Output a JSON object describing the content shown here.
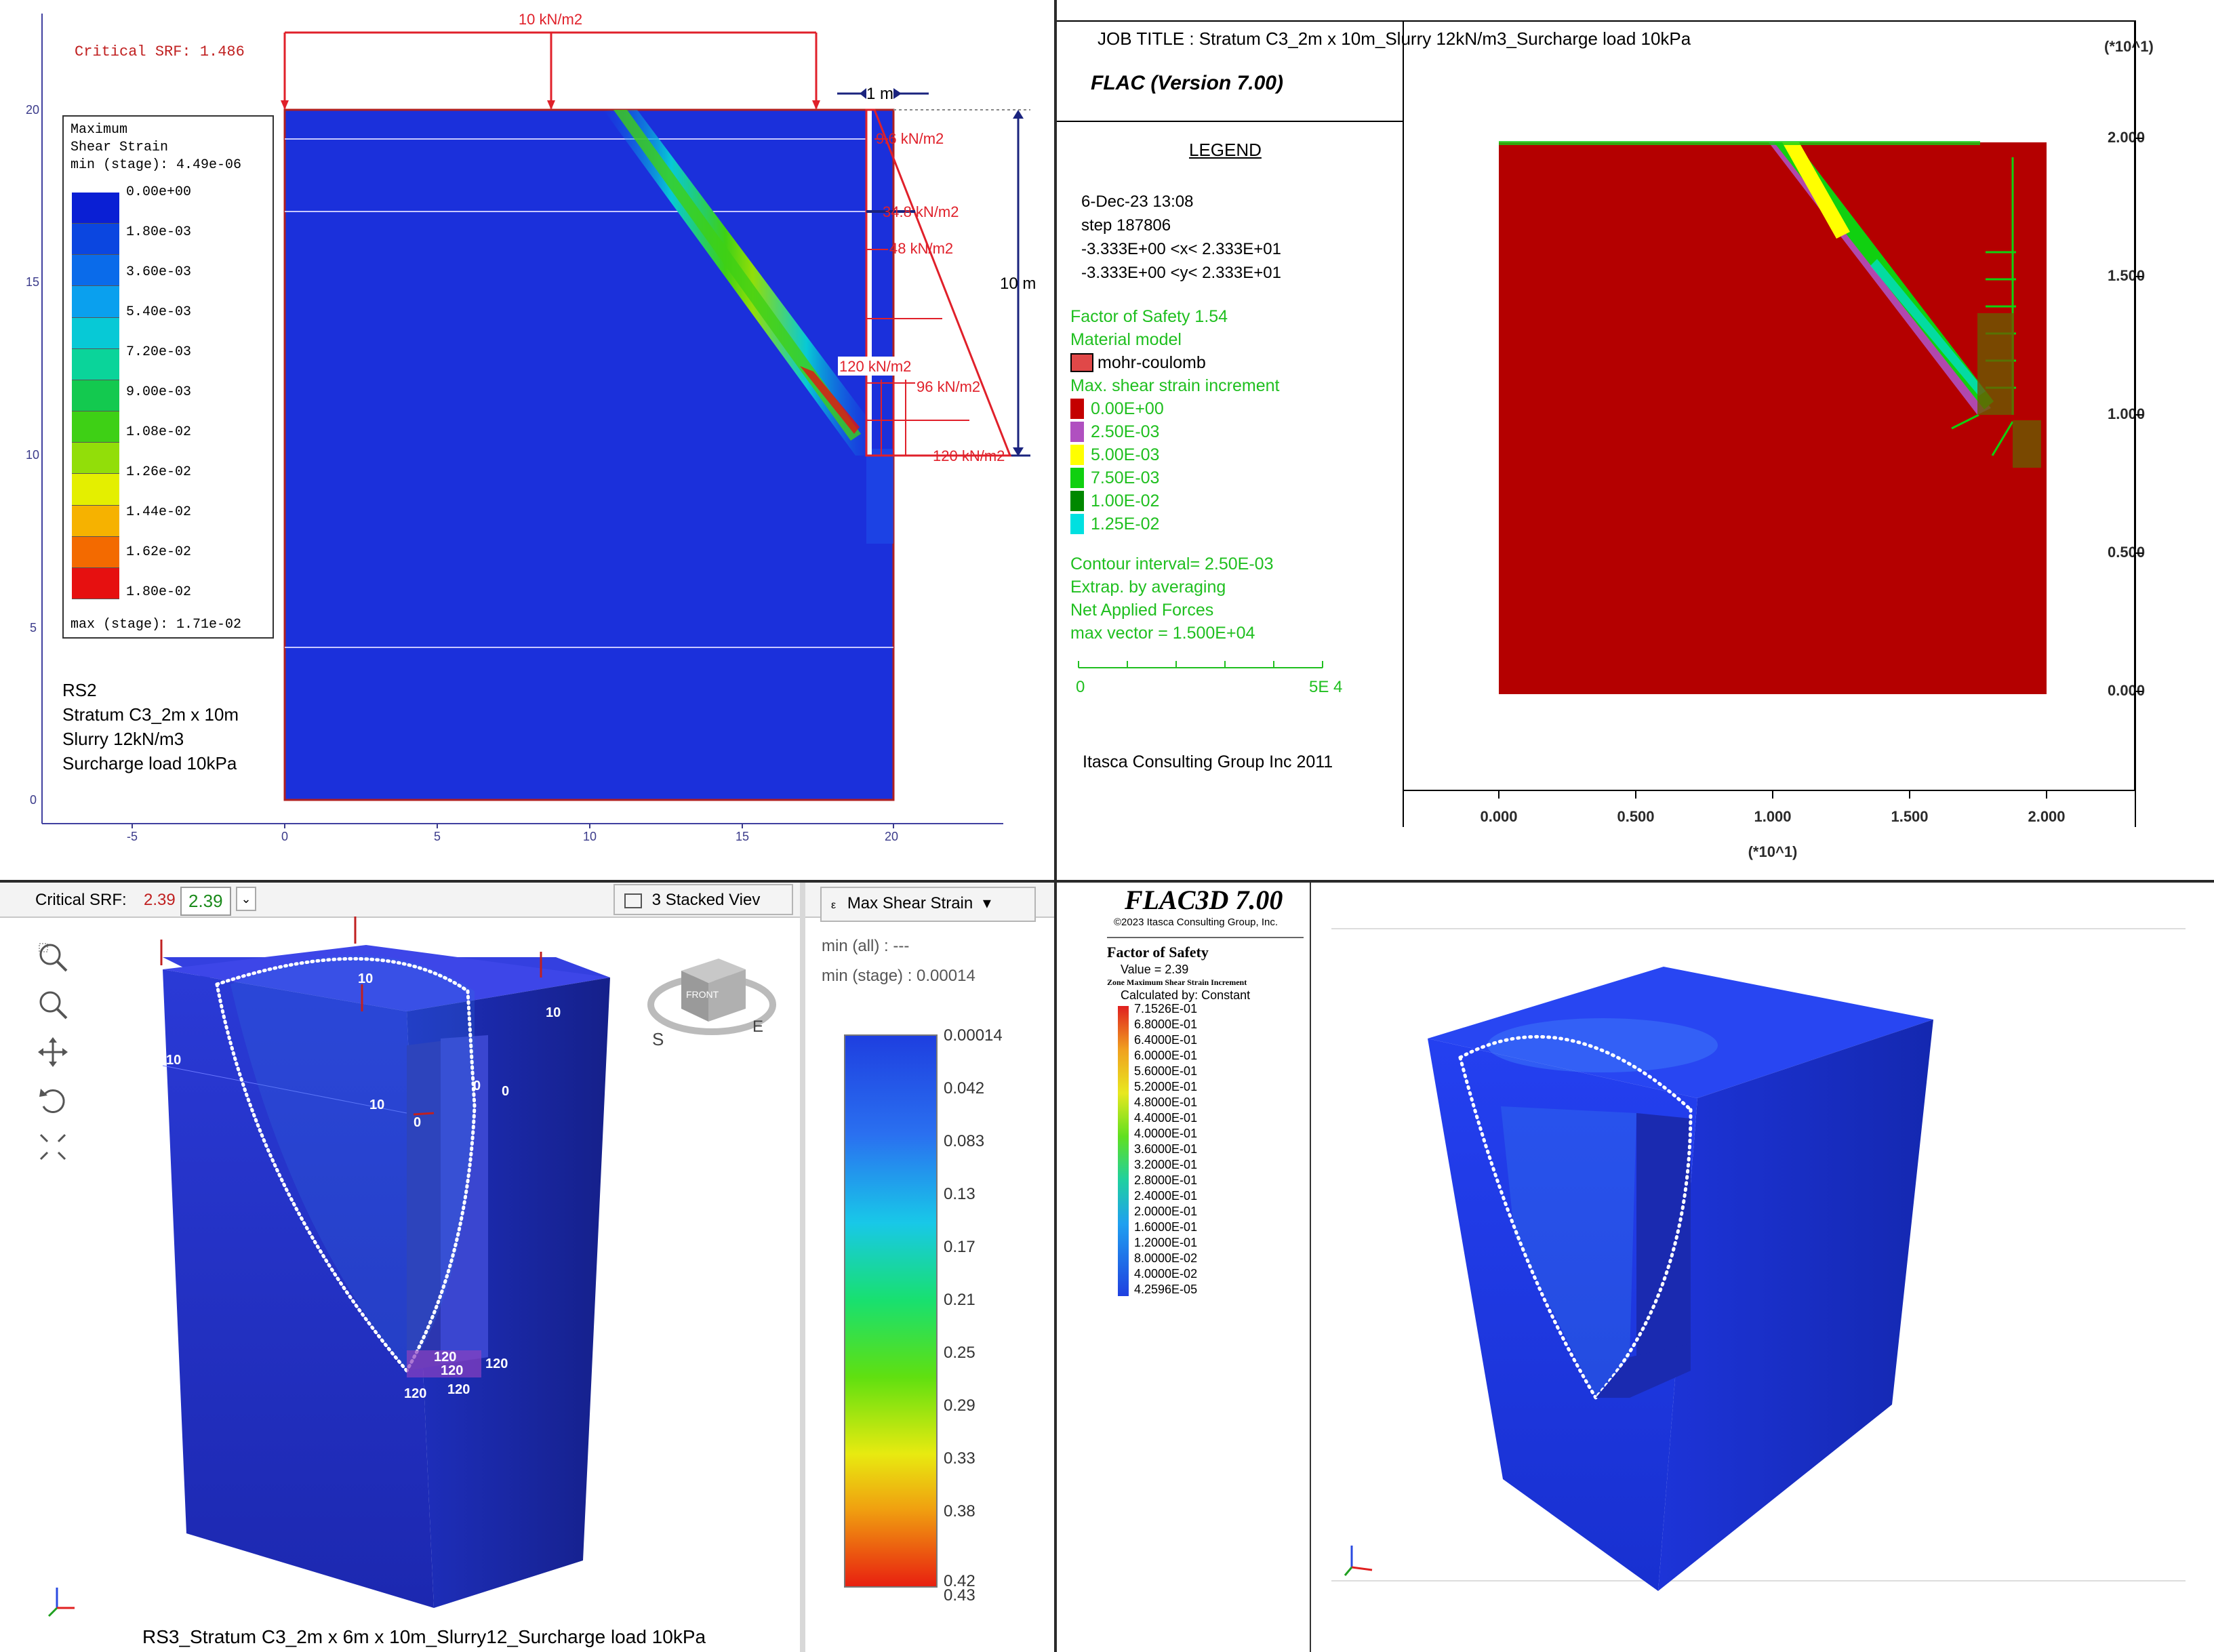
{
  "colors": {
    "rs_blue": "#1a3fe0",
    "flac_red": "#b40000",
    "flac_green": "#1fbf1f",
    "load_red": "#e0202a",
    "dim_blue": "#1a237e"
  },
  "rs2": {
    "critical_srf": "Critical SRF: 1.486",
    "legend": {
      "title_1": "Maximum",
      "title_2": "Shear Strain",
      "min_label": "min (stage): 4.49e-06",
      "levels": [
        "0.00e+00",
        "1.80e-03",
        "3.60e-03",
        "5.40e-03",
        "7.20e-03",
        "9.00e-03",
        "1.08e-02",
        "1.26e-02",
        "1.44e-02",
        "1.62e-02",
        "1.80e-02"
      ],
      "max_label": "max (stage): 1.71e-02",
      "level_colors": [
        "#0a1fd4",
        "#0b46e0",
        "#0a6bea",
        "#0aa0ee",
        "#07c9d6",
        "#0ad49a",
        "#13c94f",
        "#3ed015",
        "#92de09",
        "#e4ef00",
        "#f6b200",
        "#f36a00",
        "#e61010"
      ]
    },
    "surcharge": "10 kN/m2",
    "dim_width": "1 m",
    "dim_height": "10 m",
    "pressures": [
      "9.6 kN/m2",
      "34.8 kN/m2",
      "48 kN/m2",
      "120 kN/m2",
      "96 kN/m2",
      "120 kN/m2"
    ],
    "y_ticks": [
      "20",
      "15",
      "10",
      "5",
      "0"
    ],
    "x_ticks": [
      "-5",
      "0",
      "5",
      "10",
      "15",
      "20"
    ],
    "caption": [
      "RS2",
      "Stratum C3_2m x 10m",
      "Slurry 12kN/m3",
      "Surcharge load 10kPa"
    ]
  },
  "flac": {
    "job_title": "JOB TITLE : Stratum C3_2m x 10m_Slurry 12kN/m3_Surcharge load 10kPa",
    "version": "FLAC (Version 7.00)",
    "legend_heading": "LEGEND",
    "date": "6-Dec-23  13:08",
    "step": "step   187806",
    "x_range": "-3.333E+00 <x<  2.333E+01",
    "y_range": "-3.333E+00 <y<  2.333E+01",
    "fos": "Factor of Safety  1.54",
    "material_model": "Material model",
    "mohr": "mohr-coulomb",
    "strain_title": "Max. shear strain increment",
    "strain_levels": [
      "0.00E+00",
      "2.50E-03",
      "5.00E-03",
      "7.50E-03",
      "1.00E-02",
      "1.25E-02"
    ],
    "strain_colors": [
      "#c40000",
      "#b050c0",
      "#ffff00",
      "#10d010",
      "#008800",
      "#00e0e0"
    ],
    "contour": "Contour interval=  2.50E-03",
    "extrap": "Extrap. by averaging",
    "net_forces": "Net Applied Forces",
    "max_vector": "max vector =     1.500E+04",
    "scale_left": "0",
    "scale_right": "5E  4",
    "itasca": "Itasca Consulting Group Inc 2011",
    "y_exp": "(*10^1)",
    "y_ticks": [
      "2.000",
      "1.500",
      "1.000",
      "0.500",
      "0.000"
    ],
    "x_ticks": [
      "0.000",
      "0.500",
      "1.000",
      "1.500",
      "2.000"
    ],
    "x_exp": "(*10^1)"
  },
  "rs3": {
    "critical_label": "Critical SRF:",
    "srf_red": "2.39",
    "srf_green": "2.39",
    "view_label": "3 Stacked Viev",
    "contour_label": "Max Shear Strain",
    "min_all": "min (all) :       ---",
    "min_stage": "min (stage) : 0.00014",
    "scale_values": [
      "0.00014",
      "0.042",
      "0.083",
      "0.13",
      "0.17",
      "0.21",
      "0.25",
      "0.29",
      "0.33",
      "0.38",
      "0.42",
      "0.43"
    ],
    "load_labels_top": [
      "10",
      "10",
      "10",
      "10",
      "0",
      "0",
      "0"
    ],
    "load_labels_bottom": [
      "120",
      "120",
      "120",
      "120",
      "120"
    ],
    "compass": [
      "FRONT",
      "S",
      "E"
    ],
    "caption": "RS3_Stratum C3_2m x 6m x 10m_Slurry12_Surcharge load 10kPa"
  },
  "flac3d": {
    "title": "FLAC3D 7.00",
    "copyright": "©2023 Itasca Consulting Group, Inc.",
    "fos_title": "Factor of Safety",
    "fos_value": "Value = 2.39",
    "strain_title": "Zone Maximum Shear Strain Increment",
    "calc": "Calculated by: Constant",
    "levels": [
      "7.1526E-01",
      "6.8000E-01",
      "6.4000E-01",
      "6.0000E-01",
      "5.6000E-01",
      "5.2000E-01",
      "4.8000E-01",
      "4.4000E-01",
      "4.0000E-01",
      "3.6000E-01",
      "3.2000E-01",
      "2.8000E-01",
      "2.4000E-01",
      "2.0000E-01",
      "1.6000E-01",
      "1.2000E-01",
      "8.0000E-02",
      "4.0000E-02",
      "4.2596E-05"
    ]
  }
}
